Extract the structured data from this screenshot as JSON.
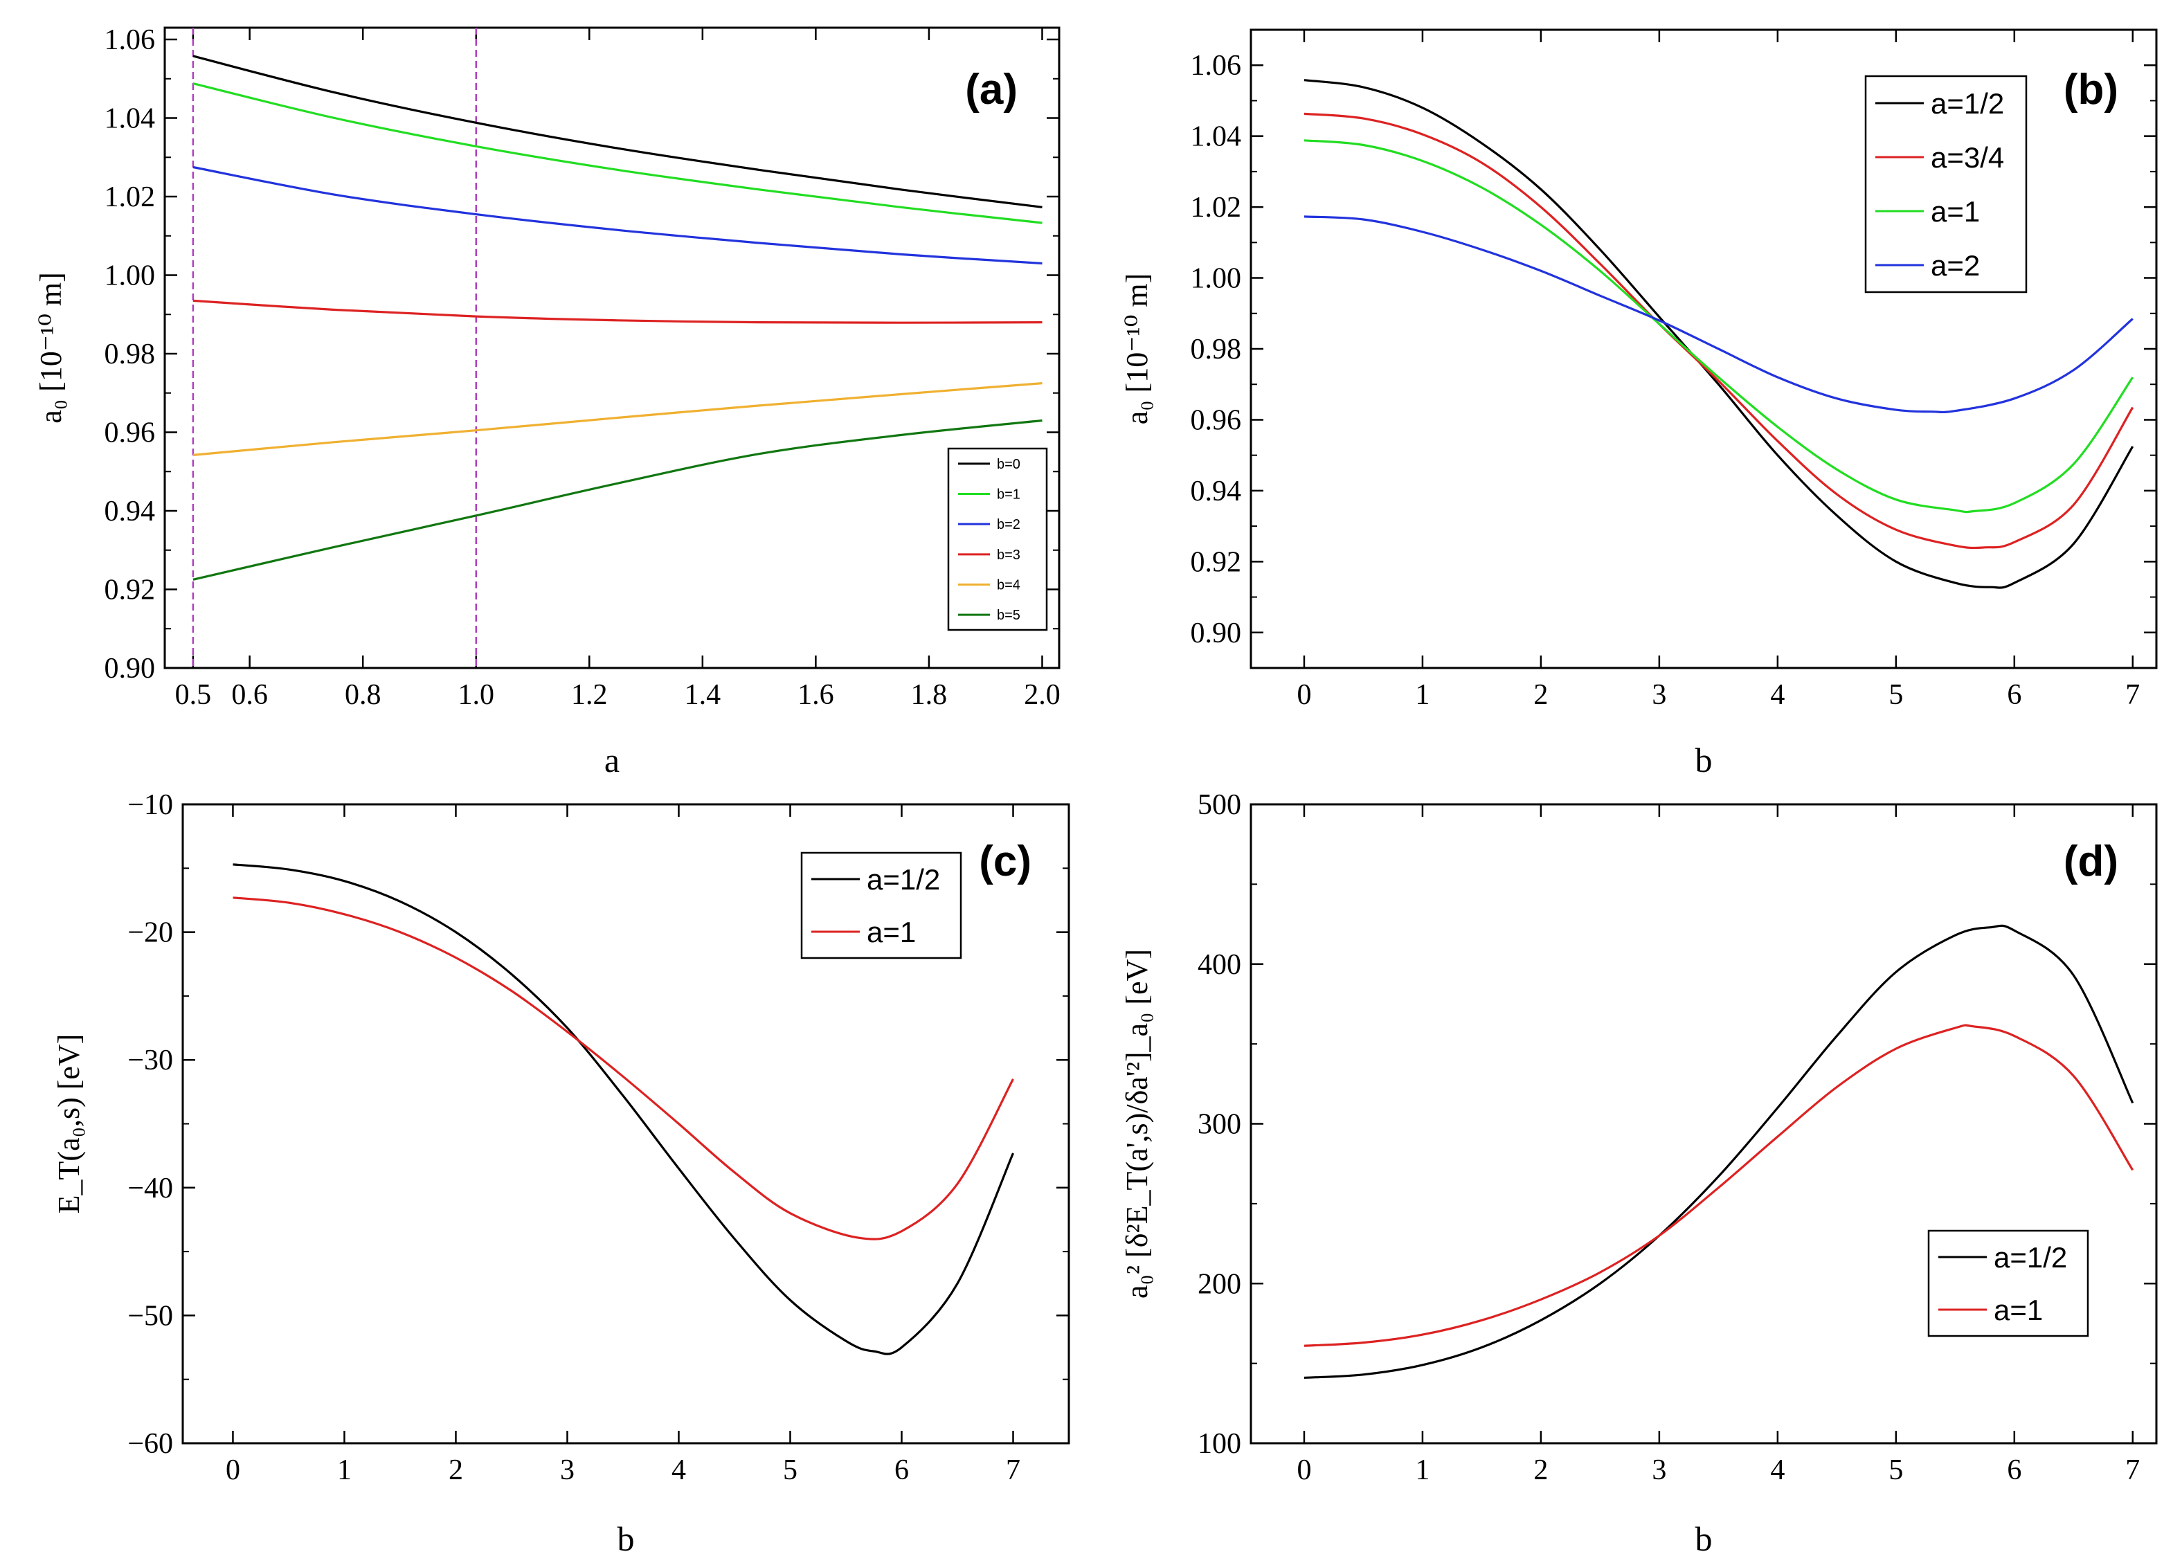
{
  "chart_data": [
    {
      "id": "a",
      "type": "line",
      "panel_label": "(a)",
      "xlabel": "a",
      "ylabel": "a₀ [10⁻¹⁰ m]",
      "xlim": [
        0.45,
        2.03
      ],
      "ylim": [
        0.9,
        1.063
      ],
      "xticks": [
        0.5,
        0.6,
        0.8,
        1.0,
        1.2,
        1.4,
        1.6,
        1.8,
        2.0
      ],
      "xtick_labels": [
        "0.5",
        "0.6",
        "0.8",
        "1.0",
        "1.2",
        "1.4",
        "1.6",
        "1.8",
        "2.0"
      ],
      "yticks": [
        0.9,
        0.92,
        0.94,
        0.96,
        0.98,
        1.0,
        1.02,
        1.04,
        1.06
      ],
      "ytick_labels": [
        "0.90",
        "0.92",
        "0.94",
        "0.96",
        "0.98",
        "1.00",
        "1.02",
        "1.04",
        "1.06"
      ],
      "vlines": [
        0.5,
        1.0
      ],
      "vline_color": "#b040c0",
      "legend_position": "bottom-right",
      "legend_small": true,
      "series": [
        {
          "name": "b=0",
          "color": "#000000",
          "x": [
            0.5,
            0.75,
            1.0,
            1.25,
            1.5,
            1.75,
            2.0
          ],
          "y": [
            1.0558,
            1.0465,
            1.0388,
            1.0323,
            1.0268,
            1.0218,
            1.0173
          ]
        },
        {
          "name": "b=1",
          "color": "#22dd22",
          "x": [
            0.5,
            0.75,
            1.0,
            1.25,
            1.5,
            1.75,
            2.0
          ],
          "y": [
            1.0488,
            1.04,
            1.0328,
            1.0268,
            1.0218,
            1.0173,
            1.0133
          ]
        },
        {
          "name": "b=2",
          "color": "#2233dd",
          "x": [
            0.5,
            0.75,
            1.0,
            1.25,
            1.5,
            1.75,
            2.0
          ],
          "y": [
            1.0275,
            1.0205,
            1.0155,
            1.0115,
            1.0082,
            1.0053,
            1.003
          ]
        },
        {
          "name": "b=3",
          "color": "#dd2222",
          "x": [
            0.5,
            0.75,
            1.0,
            1.25,
            1.5,
            1.75,
            2.0
          ],
          "y": [
            0.9935,
            0.9912,
            0.9895,
            0.9885,
            0.988,
            0.9879,
            0.988
          ]
        },
        {
          "name": "b=4",
          "color": "#f0b030",
          "x": [
            0.5,
            0.75,
            1.0,
            1.25,
            1.5,
            1.75,
            2.0
          ],
          "y": [
            0.9542,
            0.9575,
            0.9605,
            0.9637,
            0.9668,
            0.9697,
            0.9725
          ]
        },
        {
          "name": "b=5",
          "color": "#117711",
          "x": [
            0.5,
            0.75,
            1.0,
            1.25,
            1.5,
            1.75,
            2.0
          ],
          "y": [
            0.9225,
            0.9308,
            0.9388,
            0.947,
            0.9545,
            0.9593,
            0.963
          ]
        }
      ]
    },
    {
      "id": "b",
      "type": "line",
      "panel_label": "(b)",
      "xlabel": "b",
      "ylabel": "a₀ [10⁻¹⁰ m]",
      "xlim": [
        -0.45,
        7.2
      ],
      "ylim": [
        0.89,
        1.07
      ],
      "xticks": [
        0,
        1,
        2,
        3,
        4,
        5,
        6,
        7
      ],
      "xtick_labels": [
        "0",
        "1",
        "2",
        "3",
        "4",
        "5",
        "6",
        "7"
      ],
      "yticks": [
        0.9,
        0.92,
        0.94,
        0.96,
        0.98,
        1.0,
        1.02,
        1.04,
        1.06
      ],
      "ytick_labels": [
        "0.90",
        "0.92",
        "0.94",
        "0.96",
        "0.98",
        "1.00",
        "1.02",
        "1.04",
        "1.06"
      ],
      "legend_position": "top-right",
      "series": [
        {
          "name": "a=1/2",
          "color": "#000000",
          "x": [
            0,
            0.5,
            1,
            1.5,
            2,
            2.5,
            3,
            3.5,
            4,
            4.5,
            5,
            5.5,
            5.8,
            6,
            6.5,
            7
          ],
          "y": [
            1.0558,
            1.0538,
            1.048,
            1.038,
            1.025,
            1.008,
            0.989,
            0.97,
            0.95,
            0.933,
            0.92,
            0.914,
            0.9128,
            0.914,
            0.925,
            0.9525
          ]
        },
        {
          "name": "a=3/4",
          "color": "#dd2222",
          "x": [
            0,
            0.5,
            1,
            1.5,
            2,
            2.5,
            3,
            3.5,
            4,
            4.5,
            5,
            5.5,
            5.75,
            6,
            6.5,
            7
          ],
          "y": [
            1.0463,
            1.045,
            1.0405,
            1.0325,
            1.02,
            1.004,
            0.987,
            0.971,
            0.954,
            0.939,
            0.929,
            0.9245,
            0.924,
            0.9255,
            0.936,
            0.9635
          ]
        },
        {
          "name": "a=1",
          "color": "#22dd22",
          "x": [
            0,
            0.5,
            1,
            1.5,
            2,
            2.5,
            3,
            3.5,
            4,
            4.5,
            5,
            5.5,
            5.65,
            6,
            6.5,
            7
          ],
          "y": [
            1.0388,
            1.0375,
            1.033,
            1.0255,
            1.015,
            1.002,
            0.987,
            0.972,
            0.958,
            0.946,
            0.9375,
            0.9345,
            0.9342,
            0.9365,
            0.9475,
            0.972
          ]
        },
        {
          "name": "a=2",
          "color": "#2233dd",
          "x": [
            0,
            0.5,
            1,
            1.5,
            2,
            2.5,
            3,
            3.5,
            4,
            4.5,
            5,
            5.3,
            5.5,
            6,
            6.5,
            7
          ],
          "y": [
            1.0173,
            1.0165,
            1.013,
            1.008,
            1.002,
            0.995,
            0.988,
            0.98,
            0.972,
            0.966,
            0.9628,
            0.9623,
            0.9625,
            0.966,
            0.974,
            0.9885
          ]
        }
      ]
    },
    {
      "id": "c",
      "type": "line",
      "panel_label": "(c)",
      "xlabel": "b",
      "ylabel": "E_T(a₀,s) [eV]",
      "xlim": [
        -0.45,
        7.5
      ],
      "ylim": [
        -60,
        -10
      ],
      "xticks": [
        0,
        1,
        2,
        3,
        4,
        5,
        6,
        7
      ],
      "xtick_labels": [
        "0",
        "1",
        "2",
        "3",
        "4",
        "5",
        "6",
        "7"
      ],
      "yticks": [
        -60,
        -50,
        -40,
        -30,
        -20,
        -10
      ],
      "ytick_labels": [
        "−60",
        "−50",
        "−40",
        "−30",
        "−20",
        "−10"
      ],
      "legend_position": "top-right",
      "series": [
        {
          "name": "a=1/2",
          "color": "#000000",
          "x": [
            0,
            0.5,
            1,
            1.5,
            2,
            2.5,
            3,
            3.5,
            4,
            4.5,
            5,
            5.5,
            5.75,
            6,
            6.5,
            7
          ],
          "y": [
            -14.7,
            -15.1,
            -16.0,
            -17.6,
            -20.0,
            -23.3,
            -27.5,
            -32.8,
            -38.5,
            -44.0,
            -48.8,
            -52.0,
            -52.8,
            -52.5,
            -47.5,
            -37.3
          ]
        },
        {
          "name": "a=1",
          "color": "#dd2222",
          "x": [
            0,
            0.5,
            1,
            1.5,
            2,
            2.5,
            3,
            3.5,
            4,
            4.5,
            5,
            5.6,
            6,
            6.5,
            7
          ],
          "y": [
            -17.3,
            -17.7,
            -18.6,
            -20.0,
            -22.0,
            -24.6,
            -27.8,
            -31.3,
            -35.0,
            -38.8,
            -42.0,
            -43.9,
            -43.4,
            -39.7,
            -31.5
          ]
        }
      ]
    },
    {
      "id": "d",
      "type": "line",
      "panel_label": "(d)",
      "xlabel": "b",
      "ylabel": "a₀² [δ²E_T(a',s)/δa'²]_a₀ [eV]",
      "xlim": [
        -0.45,
        7.2
      ],
      "ylim": [
        100,
        500
      ],
      "xticks": [
        0,
        1,
        2,
        3,
        4,
        5,
        6,
        7
      ],
      "xtick_labels": [
        "0",
        "1",
        "2",
        "3",
        "4",
        "5",
        "6",
        "7"
      ],
      "yticks": [
        100,
        200,
        300,
        400,
        500
      ],
      "ytick_labels": [
        "100",
        "200",
        "300",
        "400",
        "500"
      ],
      "legend_position": "bottom-right",
      "series": [
        {
          "name": "a=1/2",
          "color": "#000000",
          "x": [
            0,
            0.5,
            1,
            1.5,
            2,
            2.5,
            3,
            3.5,
            4,
            4.5,
            5,
            5.5,
            5.8,
            6,
            6.5,
            7
          ],
          "y": [
            141,
            143,
            149,
            160,
            177,
            200,
            230,
            267,
            310,
            355,
            395,
            418,
            423,
            421,
            393,
            313
          ]
        },
        {
          "name": "a=1",
          "color": "#dd2222",
          "x": [
            0,
            0.5,
            1,
            1.5,
            2,
            2.5,
            3,
            3.5,
            4,
            4.5,
            5,
            5.5,
            5.65,
            6,
            6.5,
            7
          ],
          "y": [
            161,
            163,
            168,
            177,
            190,
            207,
            230,
            260,
            292,
            323,
            347,
            360,
            361,
            355,
            330,
            271
          ]
        }
      ]
    }
  ]
}
